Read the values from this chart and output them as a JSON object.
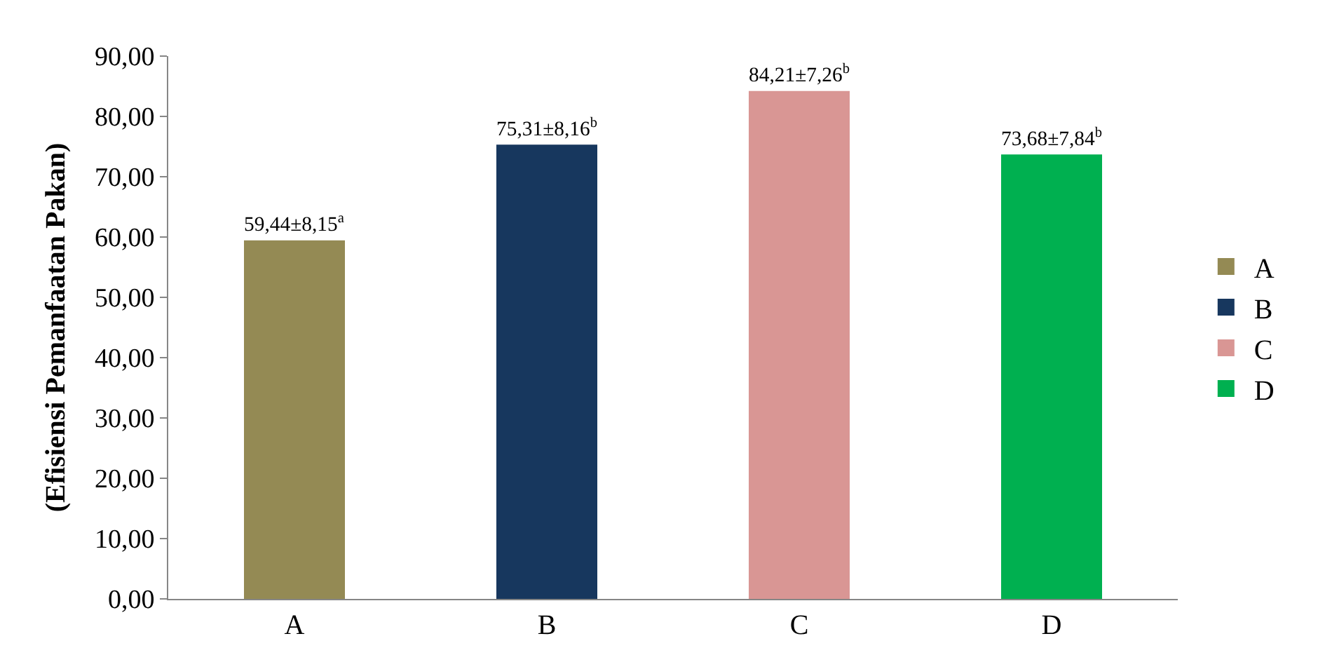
{
  "chart_data": {
    "type": "bar",
    "ylabel": "(Efisiensi Pemanfaatan Pakan)",
    "categories": [
      "A",
      "B",
      "C",
      "D"
    ],
    "series": [
      {
        "name": "A",
        "color": "#948a54",
        "values": [
          59.44,
          null,
          null,
          null
        ],
        "value_labels": [
          "59,44±8,15$^{a}$",
          null,
          null,
          null
        ]
      },
      {
        "name": "B",
        "color": "#17375e",
        "values": [
          null,
          75.31,
          null,
          null
        ],
        "value_labels": [
          null,
          "75,31±8,16$^{b}$",
          null,
          null
        ]
      },
      {
        "name": "C",
        "color": "#d99694",
        "values": [
          null,
          null,
          84.21,
          null
        ],
        "value_labels": [
          null,
          null,
          "84,21±7,26$^{b}$",
          null
        ]
      },
      {
        "name": "D",
        "color": "#00b050",
        "values": [
          null,
          null,
          null,
          73.68
        ],
        "value_labels": [
          null,
          null,
          null,
          "73,68±7,84$^{b}$"
        ]
      }
    ],
    "ylim": [
      0,
      90
    ],
    "yticks": [
      {
        "value": 0,
        "label": "0,00"
      },
      {
        "value": 10,
        "label": "10,00"
      },
      {
        "value": 20,
        "label": "20,00"
      },
      {
        "value": 30,
        "label": "30,00"
      },
      {
        "value": 40,
        "label": "40,00"
      },
      {
        "value": 50,
        "label": "50,00"
      },
      {
        "value": 60,
        "label": "60,00"
      },
      {
        "value": 70,
        "label": "70,00"
      },
      {
        "value": 80,
        "label": "80,00"
      },
      {
        "value": 90,
        "label": "90,00"
      }
    ],
    "legend": "right"
  }
}
